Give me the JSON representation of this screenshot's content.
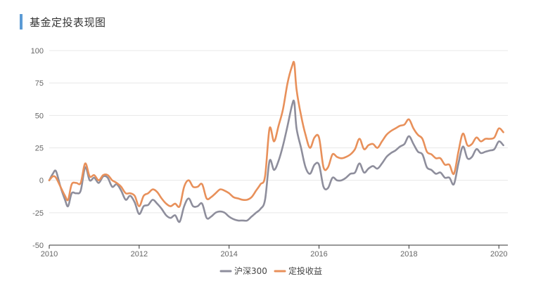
{
  "header": {
    "title": "基金定投表现图"
  },
  "colors": {
    "accent": "#5b9bd5",
    "hs300": "#8e8e9c",
    "dingtou": "#e8905a",
    "grid": "#e8e8e8",
    "axis": "#333333"
  },
  "chart_data": {
    "type": "line",
    "title": "基金定投表现图",
    "xlabel": "",
    "ylabel": "",
    "xlim": [
      2010,
      2020.2
    ],
    "ylim": [
      -50,
      100
    ],
    "x_ticks": [
      "2010",
      "2012",
      "2014",
      "2016",
      "2018",
      "2020"
    ],
    "y_ticks": [
      "100",
      "75",
      "50",
      "25",
      "0",
      "-25",
      "-50"
    ],
    "grid": true,
    "legend_position": "bottom",
    "series": [
      {
        "name": "沪深300",
        "color": "#8e8e9c",
        "points": [
          [
            2010.0,
            0
          ],
          [
            2010.08,
            5
          ],
          [
            2010.15,
            7
          ],
          [
            2010.25,
            -5
          ],
          [
            2010.35,
            -15
          ],
          [
            2010.42,
            -20
          ],
          [
            2010.5,
            -10
          ],
          [
            2010.6,
            -10
          ],
          [
            2010.7,
            -8
          ],
          [
            2010.8,
            10
          ],
          [
            2010.9,
            0
          ],
          [
            2011.0,
            2
          ],
          [
            2011.1,
            -2
          ],
          [
            2011.2,
            3
          ],
          [
            2011.3,
            2
          ],
          [
            2011.4,
            -5
          ],
          [
            2011.5,
            -3
          ],
          [
            2011.6,
            -8
          ],
          [
            2011.7,
            -15
          ],
          [
            2011.8,
            -12
          ],
          [
            2011.9,
            -17
          ],
          [
            2012.0,
            -26
          ],
          [
            2012.1,
            -20
          ],
          [
            2012.2,
            -19
          ],
          [
            2012.3,
            -15
          ],
          [
            2012.4,
            -18
          ],
          [
            2012.5,
            -22
          ],
          [
            2012.6,
            -27
          ],
          [
            2012.7,
            -29
          ],
          [
            2012.8,
            -27
          ],
          [
            2012.9,
            -32
          ],
          [
            2013.0,
            -20
          ],
          [
            2013.1,
            -14
          ],
          [
            2013.2,
            -20
          ],
          [
            2013.3,
            -20
          ],
          [
            2013.4,
            -18
          ],
          [
            2013.5,
            -29
          ],
          [
            2013.6,
            -28
          ],
          [
            2013.7,
            -25
          ],
          [
            2013.8,
            -24
          ],
          [
            2013.9,
            -25
          ],
          [
            2014.0,
            -28
          ],
          [
            2014.1,
            -30
          ],
          [
            2014.2,
            -31
          ],
          [
            2014.3,
            -31
          ],
          [
            2014.4,
            -31
          ],
          [
            2014.5,
            -28
          ],
          [
            2014.6,
            -25
          ],
          [
            2014.7,
            -22
          ],
          [
            2014.8,
            -15
          ],
          [
            2014.9,
            15
          ],
          [
            2015.0,
            8
          ],
          [
            2015.1,
            15
          ],
          [
            2015.2,
            27
          ],
          [
            2015.3,
            42
          ],
          [
            2015.4,
            58
          ],
          [
            2015.45,
            60
          ],
          [
            2015.5,
            40
          ],
          [
            2015.6,
            25
          ],
          [
            2015.7,
            10
          ],
          [
            2015.8,
            5
          ],
          [
            2015.9,
            12
          ],
          [
            2016.0,
            12
          ],
          [
            2016.1,
            -5
          ],
          [
            2016.2,
            -6
          ],
          [
            2016.3,
            2
          ],
          [
            2016.4,
            0
          ],
          [
            2016.5,
            0
          ],
          [
            2016.6,
            2
          ],
          [
            2016.7,
            5
          ],
          [
            2016.8,
            6
          ],
          [
            2016.9,
            13
          ],
          [
            2017.0,
            6
          ],
          [
            2017.1,
            9
          ],
          [
            2017.2,
            11
          ],
          [
            2017.3,
            9
          ],
          [
            2017.4,
            13
          ],
          [
            2017.5,
            18
          ],
          [
            2017.6,
            21
          ],
          [
            2017.7,
            23
          ],
          [
            2017.8,
            26
          ],
          [
            2017.9,
            28
          ],
          [
            2018.0,
            34
          ],
          [
            2018.1,
            28
          ],
          [
            2018.2,
            22
          ],
          [
            2018.3,
            20
          ],
          [
            2018.4,
            10
          ],
          [
            2018.5,
            8
          ],
          [
            2018.6,
            5
          ],
          [
            2018.7,
            6
          ],
          [
            2018.8,
            2
          ],
          [
            2018.9,
            2
          ],
          [
            2019.0,
            -3
          ],
          [
            2019.1,
            13
          ],
          [
            2019.2,
            26
          ],
          [
            2019.3,
            17
          ],
          [
            2019.4,
            18
          ],
          [
            2019.5,
            24
          ],
          [
            2019.6,
            21
          ],
          [
            2019.7,
            22
          ],
          [
            2019.8,
            23
          ],
          [
            2019.9,
            24
          ],
          [
            2020.0,
            30
          ],
          [
            2020.1,
            27
          ]
        ]
      },
      {
        "name": "定投收益",
        "color": "#e8905a",
        "points": [
          [
            2010.0,
            0
          ],
          [
            2010.08,
            3
          ],
          [
            2010.15,
            2
          ],
          [
            2010.25,
            -5
          ],
          [
            2010.35,
            -12
          ],
          [
            2010.42,
            -15
          ],
          [
            2010.5,
            -3
          ],
          [
            2010.6,
            -2
          ],
          [
            2010.7,
            -2
          ],
          [
            2010.8,
            13
          ],
          [
            2010.9,
            3
          ],
          [
            2011.0,
            4
          ],
          [
            2011.1,
            0
          ],
          [
            2011.2,
            4
          ],
          [
            2011.3,
            4
          ],
          [
            2011.4,
            0
          ],
          [
            2011.5,
            -2
          ],
          [
            2011.6,
            -5
          ],
          [
            2011.7,
            -10
          ],
          [
            2011.8,
            -10
          ],
          [
            2011.9,
            -12
          ],
          [
            2012.0,
            -20
          ],
          [
            2012.1,
            -12
          ],
          [
            2012.2,
            -10
          ],
          [
            2012.3,
            -7
          ],
          [
            2012.4,
            -9
          ],
          [
            2012.5,
            -14
          ],
          [
            2012.6,
            -18
          ],
          [
            2012.7,
            -20
          ],
          [
            2012.8,
            -18
          ],
          [
            2012.9,
            -20
          ],
          [
            2013.0,
            -5
          ],
          [
            2013.1,
            0
          ],
          [
            2013.2,
            -5
          ],
          [
            2013.3,
            -5
          ],
          [
            2013.4,
            -3
          ],
          [
            2013.5,
            -14
          ],
          [
            2013.6,
            -13
          ],
          [
            2013.7,
            -10
          ],
          [
            2013.8,
            -7
          ],
          [
            2013.9,
            -8
          ],
          [
            2014.0,
            -10
          ],
          [
            2014.1,
            -13
          ],
          [
            2014.2,
            -14
          ],
          [
            2014.3,
            -15
          ],
          [
            2014.4,
            -15
          ],
          [
            2014.5,
            -13
          ],
          [
            2014.6,
            -8
          ],
          [
            2014.7,
            -3
          ],
          [
            2014.8,
            3
          ],
          [
            2014.9,
            40
          ],
          [
            2015.0,
            30
          ],
          [
            2015.1,
            42
          ],
          [
            2015.2,
            55
          ],
          [
            2015.3,
            75
          ],
          [
            2015.4,
            88
          ],
          [
            2015.45,
            90
          ],
          [
            2015.5,
            70
          ],
          [
            2015.6,
            50
          ],
          [
            2015.7,
            35
          ],
          [
            2015.8,
            25
          ],
          [
            2015.9,
            33
          ],
          [
            2016.0,
            33
          ],
          [
            2016.1,
            10
          ],
          [
            2016.2,
            10
          ],
          [
            2016.3,
            20
          ],
          [
            2016.4,
            18
          ],
          [
            2016.5,
            17
          ],
          [
            2016.6,
            18
          ],
          [
            2016.7,
            20
          ],
          [
            2016.8,
            24
          ],
          [
            2016.9,
            32
          ],
          [
            2017.0,
            24
          ],
          [
            2017.1,
            27
          ],
          [
            2017.2,
            28
          ],
          [
            2017.3,
            25
          ],
          [
            2017.4,
            30
          ],
          [
            2017.5,
            35
          ],
          [
            2017.6,
            38
          ],
          [
            2017.7,
            40
          ],
          [
            2017.8,
            42
          ],
          [
            2017.9,
            43
          ],
          [
            2018.0,
            47
          ],
          [
            2018.1,
            40
          ],
          [
            2018.2,
            35
          ],
          [
            2018.3,
            32
          ],
          [
            2018.4,
            22
          ],
          [
            2018.5,
            20
          ],
          [
            2018.6,
            17
          ],
          [
            2018.7,
            17
          ],
          [
            2018.8,
            12
          ],
          [
            2018.9,
            12
          ],
          [
            2019.0,
            5
          ],
          [
            2019.1,
            22
          ],
          [
            2019.2,
            36
          ],
          [
            2019.3,
            27
          ],
          [
            2019.4,
            28
          ],
          [
            2019.5,
            33
          ],
          [
            2019.6,
            30
          ],
          [
            2019.7,
            32
          ],
          [
            2019.8,
            32
          ],
          [
            2019.9,
            33
          ],
          [
            2020.0,
            40
          ],
          [
            2020.1,
            37
          ]
        ]
      }
    ]
  }
}
